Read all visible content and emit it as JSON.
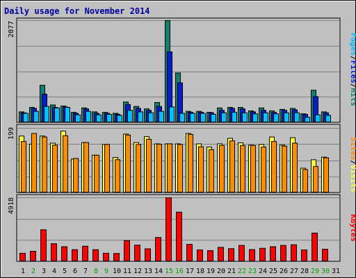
{
  "chart_data": {
    "type": "bar",
    "title": "Daily usage for November 2014",
    "categories": [
      "1",
      "2",
      "3",
      "4",
      "5",
      "6",
      "7",
      "8",
      "9",
      "10",
      "11",
      "12",
      "13",
      "14",
      "15",
      "16",
      "17",
      "18",
      "19",
      "20",
      "21",
      "22",
      "23",
      "24",
      "25",
      "26",
      "27",
      "28",
      "29",
      "30",
      "31"
    ],
    "weekend_days": [
      "2",
      "8",
      "9",
      "15",
      "16",
      "22",
      "23",
      "29",
      "30"
    ],
    "panels": [
      {
        "id": "hits-files-pages",
        "ymax": 2077,
        "ymax_label": "2077",
        "legend": [
          "Pages",
          "/",
          "Files",
          "/",
          "Hits"
        ],
        "legend_colors": [
          "#00c0ff",
          "#000000",
          "#0020d0",
          "#000000",
          "#108070"
        ],
        "series": [
          {
            "name": "Hits",
            "color": "#108070",
            "values": [
              220,
              310,
              760,
              360,
              340,
              210,
              300,
              220,
              210,
              190,
              420,
              330,
              280,
              410,
              2077,
              1010,
              230,
              230,
              210,
              300,
              310,
              310,
              240,
              300,
              240,
              270,
              290,
              180,
              660,
              220,
              0
            ]
          },
          {
            "name": "Files",
            "color": "#0020d0",
            "values": [
              200,
              290,
              580,
              310,
              320,
              190,
              280,
              190,
              190,
              170,
              370,
              290,
              250,
              330,
              1440,
              810,
              210,
              210,
              200,
              250,
              290,
              280,
              220,
              250,
              210,
              250,
              260,
              170,
              530,
              200,
              0
            ]
          },
          {
            "name": "Pages",
            "color": "#00c0ff",
            "values": [
              190,
              230,
              330,
              300,
              310,
              160,
              230,
              160,
              170,
              150,
              250,
              220,
              200,
              230,
              320,
              190,
              190,
              190,
              170,
              200,
              210,
              200,
              180,
              200,
              180,
              200,
              200,
              110,
              160,
              150,
              0
            ]
          }
        ]
      },
      {
        "id": "visits-sites",
        "ymax": 199,
        "ymax_label": "199",
        "legend": [
          "Sites",
          "/",
          "Visits"
        ],
        "legend_colors": [
          "#ff8c00",
          "#000000",
          "#ffff40"
        ],
        "series": [
          {
            "name": "Visits",
            "color": "#ffff40",
            "values": [
              175,
              150,
              175,
              153,
              190,
              104,
              155,
              116,
              149,
              109,
              181,
              155,
              173,
              151,
              151,
              151,
              183,
              151,
              141,
              151,
              168,
              154,
              147,
              149,
              172,
              147,
              170,
              76,
              102,
              110,
              0
            ]
          },
          {
            "name": "Sites",
            "color": "#ff8c00",
            "values": [
              158,
              183,
              172,
              147,
              176,
              106,
              155,
              116,
              149,
              102,
              178,
              149,
              165,
              150,
              151,
              149,
              180,
              142,
              133,
              146,
              160,
              146,
              146,
              141,
              158,
              144,
              153,
              72,
              81,
              108,
              0
            ]
          }
        ]
      },
      {
        "id": "kbytes",
        "ymax": 4918,
        "ymax_label": "4918",
        "legend": [
          "KBytes"
        ],
        "legend_colors": [
          "#ff0000"
        ],
        "series": [
          {
            "name": "KBytes",
            "color": "#ff0000",
            "values": [
              650,
              800,
              2450,
              1380,
              1150,
              920,
              1190,
              920,
              650,
              630,
              1620,
              1270,
              990,
              1860,
              4918,
              3810,
              1330,
              900,
              850,
              1100,
              1000,
              1250,
              930,
              1030,
              1150,
              1250,
              1300,
              900,
              2200,
              960,
              0
            ]
          }
        ]
      }
    ]
  }
}
